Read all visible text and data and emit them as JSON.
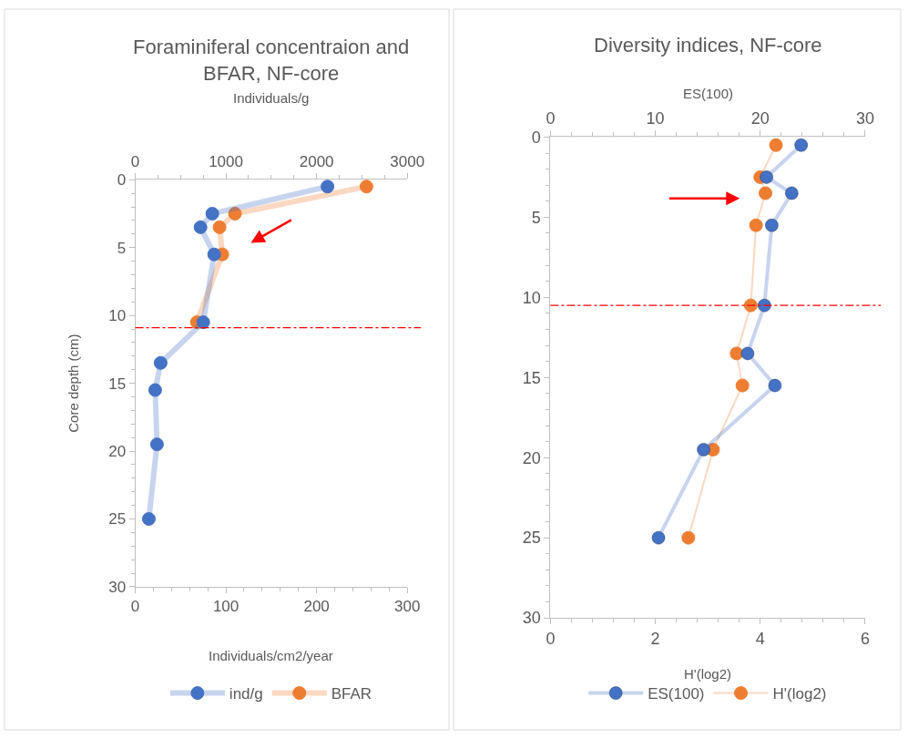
{
  "chart_data": [
    {
      "type": "line",
      "title": "Foraminiferal concentraion and\nBFAR, NF-core",
      "xlabel": "Individuals/cm2/year",
      "x2label": "Individuals/g",
      "ylabel": "Core depth (cm)",
      "series": [
        {
          "name": "ind/g",
          "color": "#4472c4",
          "axis": "x2",
          "x": [
            2120,
            850,
            720,
            870,
            750,
            280,
            220,
            240,
            150
          ],
          "values": [
            0.5,
            2.5,
            3.5,
            5.5,
            10.5,
            13.5,
            15.5,
            19.5,
            25
          ]
        },
        {
          "name": "BFAR",
          "color": "#ed7d31",
          "x": [
            255,
            110,
            93,
            96,
            68
          ],
          "values": [
            0.5,
            2.5,
            3.5,
            5.5,
            10.5
          ]
        }
      ],
      "xlim": [
        0,
        300
      ],
      "xticks": [
        0,
        100,
        200,
        300
      ],
      "x2lim": [
        0,
        3000
      ],
      "x2ticks": [
        0,
        1000,
        2000,
        3000
      ],
      "ylim": [
        30,
        0
      ],
      "yticks": [
        0,
        5,
        10,
        15,
        20,
        25,
        30
      ],
      "ref_lines": [
        {
          "axis": "y",
          "value": 10.9,
          "color": "#ff0000",
          "line_style": "dashdot"
        }
      ],
      "marker": "circle",
      "grid": false,
      "legend": "bottom"
    },
    {
      "type": "line",
      "title": "Diversity indices, NF-core",
      "xlabel": "H'(log2)",
      "x2label": "ES(100)",
      "series": [
        {
          "name": "ES(100)",
          "color": "#4472c4",
          "axis": "x2",
          "x": [
            23.9,
            20.6,
            23.0,
            21.1,
            20.4,
            18.8,
            21.4,
            14.6,
            10.3
          ],
          "values": [
            0.5,
            2.5,
            3.5,
            5.5,
            10.5,
            13.5,
            15.5,
            19.5,
            25
          ]
        },
        {
          "name": "H'(log2)",
          "color": "#ed7d31",
          "x": [
            4.3,
            4.0,
            4.1,
            3.92,
            3.82,
            3.55,
            3.66,
            3.1,
            2.63
          ],
          "values": [
            0.5,
            2.5,
            3.5,
            5.5,
            10.5,
            13.5,
            15.5,
            19.5,
            25
          ]
        }
      ],
      "xlim": [
        0,
        6
      ],
      "xticks": [
        0,
        2,
        4,
        6
      ],
      "x2lim": [
        0,
        30
      ],
      "x2ticks": [
        0,
        10,
        20,
        30
      ],
      "ylim": [
        30,
        0
      ],
      "yticks": [
        0,
        5,
        10,
        15,
        20,
        25,
        30
      ],
      "ref_lines": [
        {
          "axis": "y",
          "value": 10.5,
          "color": "#ff0000",
          "line_style": "dashdot"
        }
      ],
      "marker": "circle",
      "grid": false,
      "legend": "bottom"
    }
  ]
}
